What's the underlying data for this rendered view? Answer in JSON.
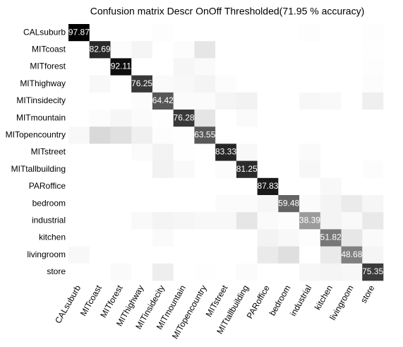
{
  "chart_data": {
    "type": "heatmap",
    "title": "Confusion matrix Descr OnOff Thresholded(71.95 % accuracy)",
    "categories": [
      "CALsuburb",
      "MITcoast",
      "MITforest",
      "MIThighway",
      "MITinsidecity",
      "MITmountain",
      "MITopencountry",
      "MITstreet",
      "MITtallbuilding",
      "PARoffice",
      "bedroom",
      "industrial",
      "kitchen",
      "livingroom",
      "store"
    ],
    "values": [
      [
        97.87,
        0,
        0,
        0,
        0.71,
        0,
        0,
        0,
        0,
        0,
        0,
        0.71,
        0,
        0,
        0.71
      ],
      [
        0,
        82.69,
        1.15,
        3.85,
        0,
        1.15,
        9.62,
        0,
        0,
        0,
        0,
        0,
        0,
        0,
        0.38
      ],
      [
        0,
        0,
        92.11,
        0,
        0,
        3.51,
        1.75,
        0,
        0,
        0,
        0,
        0,
        0,
        0,
        0.88
      ],
      [
        0,
        2.5,
        0,
        76.25,
        1.88,
        2.5,
        4.38,
        1.25,
        0,
        0,
        0,
        0,
        0,
        0,
        1.25
      ],
      [
        0,
        0,
        0,
        0.96,
        64.42,
        1.44,
        1.44,
        3.85,
        4.81,
        0,
        0,
        2.88,
        2.4,
        0,
        6.25
      ],
      [
        0,
        1.09,
        3.28,
        1.46,
        0.36,
        76.28,
        9.85,
        0,
        1.82,
        0,
        0,
        0,
        0,
        0,
        0
      ],
      [
        2.58,
        14.52,
        11.94,
        5.81,
        0.65,
        0.32,
        63.55,
        0,
        0,
        0,
        0,
        0,
        0,
        0,
        0
      ],
      [
        0,
        0,
        0,
        1.56,
        4.69,
        0.52,
        0,
        83.33,
        2.6,
        0,
        0,
        2.08,
        0,
        0,
        0
      ],
      [
        0,
        0,
        0,
        0,
        5.08,
        2.34,
        0,
        1.17,
        81.25,
        0,
        0,
        3.13,
        0,
        0,
        1.17
      ],
      [
        0,
        0,
        0,
        0,
        0,
        0,
        0,
        0,
        0,
        87.83,
        0,
        0,
        2.61,
        0,
        0
      ],
      [
        0,
        0,
        0,
        0,
        0,
        0,
        0,
        1.72,
        1.72,
        3.45,
        59.48,
        1.72,
        4.31,
        7.76,
        3.45
      ],
      [
        0,
        0,
        0,
        2.37,
        4.27,
        3.32,
        2.84,
        2.84,
        9.48,
        1.9,
        0.95,
        38.39,
        4.27,
        2.37,
        8.53
      ],
      [
        0,
        0,
        0,
        0,
        1.82,
        0,
        0,
        0,
        0,
        4.55,
        2.73,
        0.91,
        51.82,
        9.09,
        1.82
      ],
      [
        2.65,
        0,
        0,
        0,
        0,
        0,
        0,
        0,
        0,
        8.2,
        12.17,
        0,
        7.94,
        48.68,
        4.0
      ],
      [
        0,
        0,
        1.86,
        0,
        6.51,
        0,
        0.47,
        0,
        1.4,
        0,
        0,
        3.26,
        3.72,
        3.26,
        75.35
      ]
    ]
  }
}
